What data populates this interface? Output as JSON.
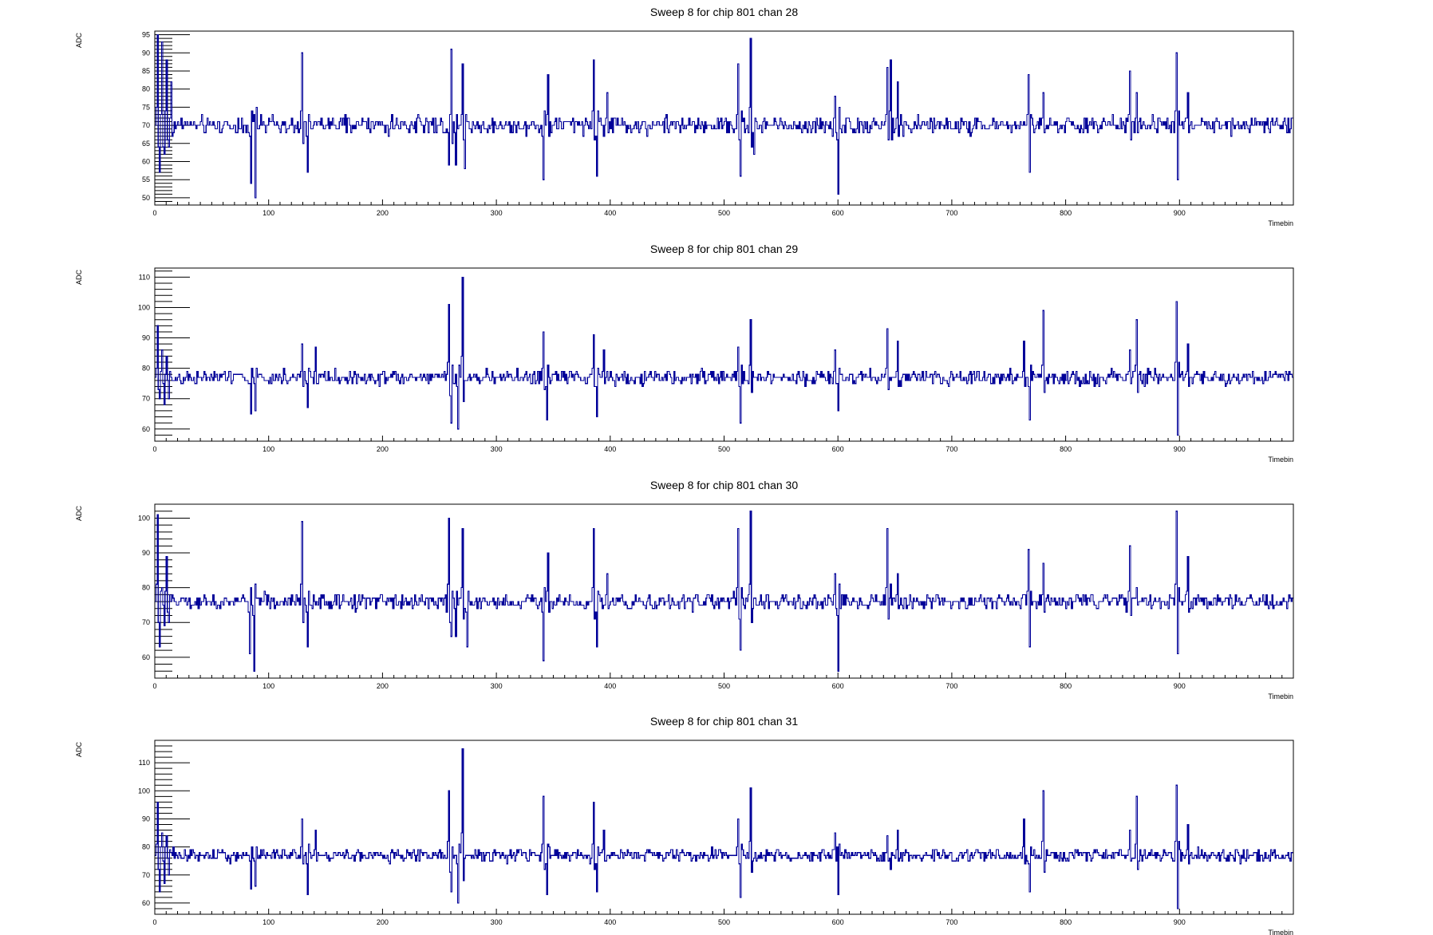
{
  "colors": {
    "trace": "#000099",
    "frame": "#000000",
    "background": "#ffffff"
  },
  "chart_data": [
    {
      "type": "line",
      "title": "Sweep 8 for chip 801 chan 28",
      "xlabel": "Timebin",
      "ylabel": "ADC",
      "xlim": [
        0,
        1000
      ],
      "ylim": [
        48,
        96
      ],
      "xticks": [
        0,
        100,
        200,
        300,
        400,
        500,
        600,
        700,
        800,
        900
      ],
      "yticks": [
        50,
        55,
        60,
        65,
        70,
        75,
        80,
        85,
        90,
        95
      ],
      "baseline": 70,
      "noise": 1.4,
      "spikes": [
        [
          2,
          95
        ],
        [
          4,
          57
        ],
        [
          6,
          93
        ],
        [
          8,
          62
        ],
        [
          10,
          88
        ],
        [
          12,
          64
        ],
        [
          14,
          82
        ],
        [
          84,
          54
        ],
        [
          88,
          50
        ],
        [
          129,
          90
        ],
        [
          134,
          57
        ],
        [
          258,
          59
        ],
        [
          260,
          91
        ],
        [
          264,
          59
        ],
        [
          270,
          87
        ],
        [
          272,
          58
        ],
        [
          341,
          55
        ],
        [
          345,
          84
        ],
        [
          385,
          88
        ],
        [
          388,
          56
        ],
        [
          397,
          79
        ],
        [
          512,
          87
        ],
        [
          514,
          56
        ],
        [
          523,
          94
        ],
        [
          526,
          62
        ],
        [
          597,
          78
        ],
        [
          600,
          51
        ],
        [
          643,
          86
        ],
        [
          646,
          88
        ],
        [
          652,
          82
        ],
        [
          767,
          84
        ],
        [
          768,
          57
        ],
        [
          780,
          79
        ],
        [
          856,
          85
        ],
        [
          862,
          79
        ],
        [
          897,
          90
        ],
        [
          898,
          55
        ],
        [
          907,
          79
        ]
      ]
    },
    {
      "type": "line",
      "title": "Sweep 8 for chip 801 chan 29",
      "xlabel": "Timebin",
      "ylabel": "ADC",
      "xlim": [
        0,
        1000
      ],
      "ylim": [
        56,
        113
      ],
      "xticks": [
        0,
        100,
        200,
        300,
        400,
        500,
        600,
        700,
        800,
        900
      ],
      "yticks": [
        60,
        70,
        80,
        90,
        100,
        110
      ],
      "baseline": 77,
      "noise": 1.4,
      "spikes": [
        [
          2,
          94
        ],
        [
          4,
          70
        ],
        [
          6,
          86
        ],
        [
          8,
          68
        ],
        [
          10,
          84
        ],
        [
          12,
          70
        ],
        [
          84,
          65
        ],
        [
          88,
          66
        ],
        [
          129,
          88
        ],
        [
          134,
          67
        ],
        [
          141,
          87
        ],
        [
          258,
          101
        ],
        [
          260,
          62
        ],
        [
          266,
          60
        ],
        [
          270,
          110
        ],
        [
          341,
          92
        ],
        [
          344,
          63
        ],
        [
          385,
          91
        ],
        [
          388,
          64
        ],
        [
          394,
          86
        ],
        [
          512,
          87
        ],
        [
          514,
          62
        ],
        [
          523,
          96
        ],
        [
          597,
          86
        ],
        [
          600,
          66
        ],
        [
          643,
          93
        ],
        [
          646,
          76
        ],
        [
          652,
          89
        ],
        [
          763,
          89
        ],
        [
          768,
          63
        ],
        [
          780,
          99
        ],
        [
          856,
          86
        ],
        [
          862,
          96
        ],
        [
          897,
          102
        ],
        [
          898,
          58
        ],
        [
          907,
          88
        ]
      ]
    },
    {
      "type": "line",
      "title": "Sweep 8 for chip 801 chan 30",
      "xlabel": "Timebin",
      "ylabel": "ADC",
      "xlim": [
        0,
        1000
      ],
      "ylim": [
        54,
        104
      ],
      "xticks": [
        0,
        100,
        200,
        300,
        400,
        500,
        600,
        700,
        800,
        900
      ],
      "yticks": [
        60,
        70,
        80,
        90,
        100
      ],
      "baseline": 76,
      "noise": 1.3,
      "spikes": [
        [
          2,
          101
        ],
        [
          4,
          63
        ],
        [
          6,
          80
        ],
        [
          8,
          69
        ],
        [
          10,
          89
        ],
        [
          12,
          70
        ],
        [
          83,
          61
        ],
        [
          87,
          56
        ],
        [
          129,
          99
        ],
        [
          134,
          63
        ],
        [
          258,
          100
        ],
        [
          260,
          66
        ],
        [
          264,
          66
        ],
        [
          270,
          97
        ],
        [
          274,
          63
        ],
        [
          341,
          59
        ],
        [
          345,
          90
        ],
        [
          385,
          97
        ],
        [
          388,
          63
        ],
        [
          397,
          84
        ],
        [
          512,
          97
        ],
        [
          514,
          62
        ],
        [
          523,
          102
        ],
        [
          597,
          84
        ],
        [
          600,
          56
        ],
        [
          643,
          97
        ],
        [
          646,
          81
        ],
        [
          652,
          84
        ],
        [
          767,
          91
        ],
        [
          768,
          63
        ],
        [
          780,
          87
        ],
        [
          856,
          92
        ],
        [
          862,
          80
        ],
        [
          897,
          102
        ],
        [
          898,
          61
        ],
        [
          907,
          89
        ]
      ]
    },
    {
      "type": "line",
      "title": "Sweep 8 for chip 801 chan 31",
      "xlabel": "Timebin",
      "ylabel": "ADC",
      "xlim": [
        0,
        1000
      ],
      "ylim": [
        56,
        118
      ],
      "xticks": [
        0,
        100,
        200,
        300,
        400,
        500,
        600,
        700,
        800,
        900
      ],
      "yticks": [
        60,
        70,
        80,
        90,
        100,
        110
      ],
      "baseline": 77,
      "noise": 1.3,
      "spikes": [
        [
          2,
          96
        ],
        [
          4,
          64
        ],
        [
          6,
          85
        ],
        [
          8,
          67
        ],
        [
          10,
          84
        ],
        [
          12,
          70
        ],
        [
          84,
          65
        ],
        [
          88,
          66
        ],
        [
          129,
          90
        ],
        [
          134,
          63
        ],
        [
          141,
          86
        ],
        [
          258,
          100
        ],
        [
          260,
          64
        ],
        [
          266,
          60
        ],
        [
          270,
          115
        ],
        [
          341,
          98
        ],
        [
          344,
          63
        ],
        [
          385,
          96
        ],
        [
          388,
          64
        ],
        [
          394,
          86
        ],
        [
          512,
          90
        ],
        [
          514,
          62
        ],
        [
          523,
          101
        ],
        [
          597,
          85
        ],
        [
          600,
          63
        ],
        [
          643,
          84
        ],
        [
          646,
          72
        ],
        [
          652,
          86
        ],
        [
          763,
          90
        ],
        [
          768,
          64
        ],
        [
          780,
          100
        ],
        [
          856,
          86
        ],
        [
          862,
          98
        ],
        [
          897,
          102
        ],
        [
          898,
          58
        ],
        [
          907,
          88
        ]
      ]
    }
  ]
}
